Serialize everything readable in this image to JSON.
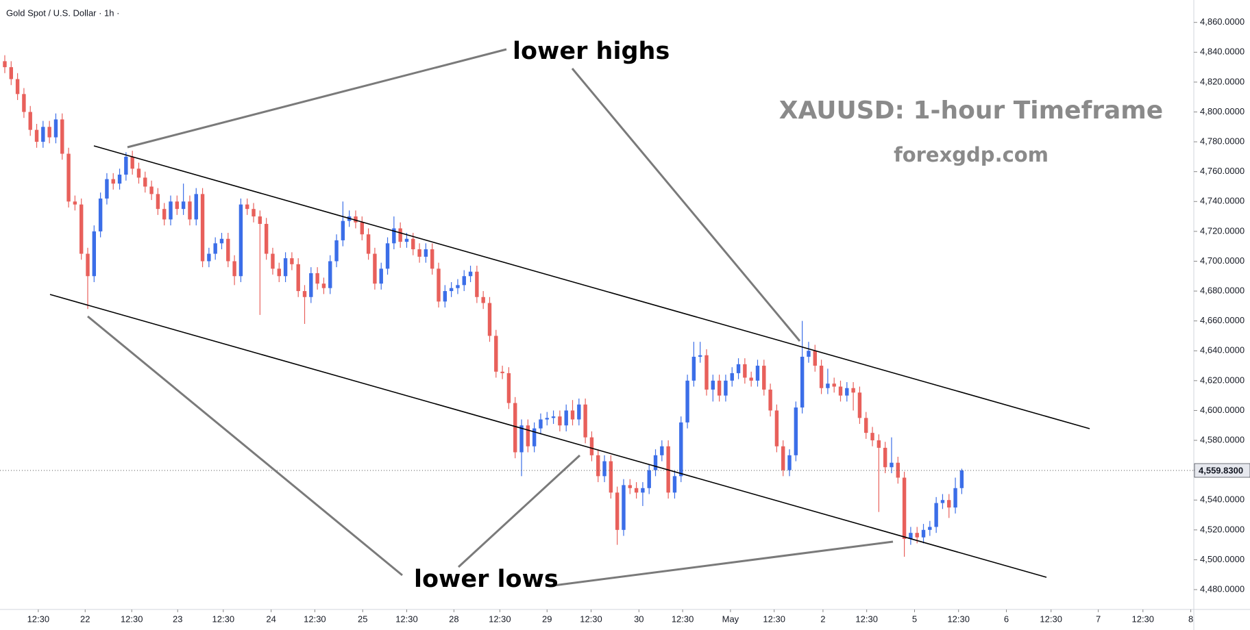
{
  "chart_data": {
    "type": "candlestick",
    "symbol": "Gold Spot / U.S. Dollar · 1h ·",
    "title": "XAUUSD: 1-hour Timeframe",
    "subtitle": "forexgdp.com",
    "annotations": [
      "lower highs",
      "lower lows"
    ],
    "up_color": "#3b6ee8",
    "down_color": "#e8605b",
    "last_price": {
      "value": 4559.83,
      "label": "4,559.8300"
    },
    "x": [
      0,
      1,
      2,
      3,
      4,
      5,
      6,
      7,
      8,
      9,
      10,
      11,
      12,
      13,
      14,
      15,
      16,
      17,
      18,
      19,
      20,
      21,
      22,
      23,
      24,
      25,
      26,
      27,
      28,
      29,
      30,
      31,
      32,
      33,
      34,
      35,
      36,
      37,
      38,
      39,
      40,
      41,
      42,
      43,
      44,
      45,
      46,
      47,
      48,
      49,
      50,
      51,
      52,
      53,
      54,
      55,
      56,
      57,
      58,
      59,
      60,
      61,
      62,
      63,
      64,
      65,
      66,
      67,
      68,
      69,
      70,
      71,
      72,
      73,
      74,
      75,
      76,
      77,
      78,
      79,
      80,
      81,
      82,
      83,
      84,
      85,
      86,
      87,
      88,
      89,
      90,
      91,
      92,
      93,
      94,
      95,
      96,
      97,
      98,
      99,
      100,
      101,
      102,
      103,
      104,
      105,
      106,
      107,
      108,
      109,
      110,
      111,
      112,
      113,
      114,
      115,
      116,
      117,
      118,
      119,
      120,
      121,
      122,
      123,
      124,
      125,
      126,
      127,
      128,
      129,
      130,
      131,
      132,
      133,
      134,
      135,
      136,
      137,
      138,
      139,
      140,
      141,
      142,
      143,
      144,
      145,
      146,
      147,
      148,
      149,
      150
    ],
    "open": [
      4834,
      4830,
      4822,
      4812,
      4800,
      4788,
      4780,
      4790,
      4783,
      4795,
      4772,
      4740,
      4738,
      4705,
      4690,
      4720,
      4742,
      4755,
      4752,
      4758,
      4770,
      4762,
      4756,
      4750,
      4745,
      4735,
      4728,
      4740,
      4735,
      4740,
      4728,
      4745,
      4700,
      4705,
      4712,
      4715,
      4700,
      4690,
      4738,
      4735,
      4730,
      4725,
      4705,
      4695,
      4690,
      4702,
      4698,
      4680,
      4676,
      4692,
      4685,
      4682,
      4700,
      4714,
      4727,
      4730,
      4726,
      4718,
      4705,
      4685,
      4695,
      4712,
      4722,
      4713,
      4715,
      4708,
      4703,
      4708,
      4695,
      4673,
      4680,
      4682,
      4684,
      4690,
      4693,
      4676,
      4672,
      4650,
      4626,
      4625,
      4605,
      4572,
      4590,
      4576,
      4588,
      4594,
      4595,
      4596,
      4590,
      4600,
      4594,
      4604,
      4582,
      4570,
      4556,
      4566,
      4545,
      4520,
      4550,
      4548,
      4545,
      4548,
      4560,
      4570,
      4576,
      4545,
      4556,
      4592,
      4620,
      4636,
      4637,
      4614,
      4620,
      4610,
      4620,
      4625,
      4631,
      4622,
      4620,
      4630,
      4614,
      4600,
      4576,
      4560,
      4570,
      4602,
      4636,
      4640,
      4630,
      4615,
      4618,
      4616,
      4610,
      4615,
      4612,
      4595,
      4585,
      4580,
      4575,
      4562,
      4565,
      4555,
      4514,
      4518,
      4515,
      4520,
      4522,
      4538,
      4540,
      4535,
      4548
    ],
    "high": [
      4838,
      4834,
      4826,
      4816,
      4804,
      4792,
      4794,
      4794,
      4799,
      4799,
      4776,
      4744,
      4742,
      4709,
      4724,
      4746,
      4759,
      4759,
      4762,
      4773,
      4774,
      4766,
      4760,
      4754,
      4749,
      4739,
      4744,
      4744,
      4752,
      4744,
      4749,
      4749,
      4709,
      4716,
      4719,
      4719,
      4704,
      4742,
      4742,
      4739,
      4734,
      4729,
      4709,
      4699,
      4706,
      4706,
      4702,
      4684,
      4696,
      4696,
      4689,
      4704,
      4718,
      4740,
      4734,
      4734,
      4730,
      4722,
      4709,
      4699,
      4716,
      4730,
      4726,
      4719,
      4719,
      4712,
      4712,
      4712,
      4699,
      4684,
      4686,
      4688,
      4694,
      4697,
      4697,
      4680,
      4676,
      4654,
      4630,
      4629,
      4609,
      4594,
      4594,
      4592,
      4598,
      4599,
      4600,
      4600,
      4604,
      4607,
      4608,
      4608,
      4586,
      4574,
      4570,
      4570,
      4549,
      4554,
      4554,
      4552,
      4552,
      4564,
      4574,
      4580,
      4580,
      4560,
      4596,
      4624,
      4646,
      4646,
      4641,
      4624,
      4624,
      4624,
      4629,
      4635,
      4635,
      4626,
      4634,
      4634,
      4618,
      4604,
      4580,
      4574,
      4606,
      4660,
      4646,
      4644,
      4634,
      4628,
      4622,
      4620,
      4619,
      4619,
      4616,
      4599,
      4589,
      4584,
      4579,
      4582,
      4569,
      4559,
      4522,
      4522,
      4524,
      4526,
      4542,
      4544,
      4544,
      4555,
      4561
    ],
    "low": [
      4826,
      4818,
      4808,
      4796,
      4784,
      4776,
      4776,
      4779,
      4779,
      4768,
      4736,
      4734,
      4701,
      4668,
      4686,
      4716,
      4738,
      4748,
      4748,
      4754,
      4758,
      4752,
      4746,
      4741,
      4731,
      4724,
      4724,
      4731,
      4731,
      4724,
      4724,
      4696,
      4696,
      4701,
      4708,
      4696,
      4684,
      4686,
      4731,
      4726,
      4664,
      4701,
      4691,
      4686,
      4686,
      4694,
      4676,
      4658,
      4672,
      4681,
      4678,
      4678,
      4696,
      4710,
      4723,
      4722,
      4714,
      4701,
      4681,
      4681,
      4691,
      4708,
      4709,
      4709,
      4704,
      4699,
      4699,
      4691,
      4669,
      4669,
      4676,
      4678,
      4680,
      4686,
      4672,
      4668,
      4646,
      4622,
      4621,
      4601,
      4568,
      4556,
      4572,
      4572,
      4584,
      4590,
      4591,
      4586,
      4586,
      4590,
      4590,
      4578,
      4566,
      4552,
      4552,
      4541,
      4510,
      4516,
      4544,
      4541,
      4536,
      4544,
      4556,
      4566,
      4541,
      4541,
      4552,
      4588,
      4616,
      4632,
      4610,
      4606,
      4606,
      4606,
      4616,
      4621,
      4618,
      4616,
      4616,
      4610,
      4596,
      4572,
      4556,
      4556,
      4566,
      4598,
      4632,
      4626,
      4611,
      4611,
      4612,
      4606,
      4606,
      4600,
      4591,
      4581,
      4576,
      4532,
      4558,
      4558,
      4551,
      4502,
      4510,
      4511,
      4511,
      4516,
      4518,
      4534,
      4528,
      4531,
      4544
    ],
    "close": [
      4830,
      4822,
      4812,
      4800,
      4788,
      4780,
      4790,
      4783,
      4795,
      4772,
      4740,
      4738,
      4705,
      4690,
      4720,
      4742,
      4755,
      4752,
      4758,
      4770,
      4762,
      4756,
      4750,
      4745,
      4735,
      4728,
      4740,
      4735,
      4740,
      4728,
      4745,
      4700,
      4705,
      4712,
      4715,
      4700,
      4690,
      4738,
      4735,
      4730,
      4725,
      4705,
      4695,
      4690,
      4702,
      4698,
      4680,
      4676,
      4692,
      4685,
      4682,
      4700,
      4714,
      4727,
      4730,
      4726,
      4718,
      4705,
      4685,
      4695,
      4712,
      4722,
      4713,
      4715,
      4708,
      4703,
      4708,
      4695,
      4673,
      4680,
      4682,
      4684,
      4690,
      4693,
      4676,
      4672,
      4650,
      4626,
      4625,
      4605,
      4572,
      4590,
      4576,
      4588,
      4594,
      4595,
      4596,
      4590,
      4600,
      4594,
      4604,
      4582,
      4570,
      4556,
      4566,
      4545,
      4520,
      4550,
      4548,
      4545,
      4548,
      4560,
      4570,
      4576,
      4545,
      4556,
      4592,
      4620,
      4636,
      4637,
      4614,
      4620,
      4610,
      4620,
      4625,
      4631,
      4622,
      4620,
      4630,
      4614,
      4600,
      4576,
      4560,
      4570,
      4602,
      4636,
      4640,
      4630,
      4615,
      4618,
      4616,
      4610,
      4615,
      4612,
      4595,
      4585,
      4580,
      4575,
      4562,
      4565,
      4555,
      4514,
      4518,
      4515,
      4520,
      4522,
      4538,
      4540,
      4535,
      4548,
      4559.83
    ],
    "xlim": [
      -0.75,
      186.375
    ],
    "xticks": [
      {
        "value": 5.25,
        "label": "12:30"
      },
      {
        "value": 12.6,
        "label": "22"
      },
      {
        "value": 19.9,
        "label": "12:30"
      },
      {
        "value": 27.1,
        "label": "23"
      },
      {
        "value": 34.25,
        "label": "12:30"
      },
      {
        "value": 41.75,
        "label": "24"
      },
      {
        "value": 48.6,
        "label": "12:30"
      },
      {
        "value": 56.1,
        "label": "25"
      },
      {
        "value": 63,
        "label": "12:30"
      },
      {
        "value": 70.4,
        "label": "28"
      },
      {
        "value": 77.6,
        "label": "12:30"
      },
      {
        "value": 85,
        "label": "29"
      },
      {
        "value": 91.9,
        "label": "12:30"
      },
      {
        "value": 99.4,
        "label": "30"
      },
      {
        "value": 106.25,
        "label": "12:30"
      },
      {
        "value": 113.75,
        "label": "May"
      },
      {
        "value": 120.6,
        "label": "12:30"
      },
      {
        "value": 128.25,
        "label": "2"
      },
      {
        "value": 135.1,
        "label": "12:30"
      },
      {
        "value": 142.6,
        "label": "5"
      },
      {
        "value": 149.5,
        "label": "12:30"
      },
      {
        "value": 157,
        "label": "6"
      },
      {
        "value": 164,
        "label": "12:30"
      },
      {
        "value": 171.4,
        "label": "7"
      },
      {
        "value": 178.4,
        "label": "12:30"
      },
      {
        "value": 185.9,
        "label": "8"
      }
    ],
    "ylim": [
      4466.7,
      4875.0
    ],
    "yticks": [
      {
        "value": 4480,
        "label": "4,480.0000"
      },
      {
        "value": 4500,
        "label": "4,500.0000"
      },
      {
        "value": 4520,
        "label": "4,520.0000"
      },
      {
        "value": 4540,
        "label": "4,540.0000"
      },
      {
        "value": 4560,
        "label": "4,560.0000"
      },
      {
        "value": 4580,
        "label": "4,580.0000"
      },
      {
        "value": 4600,
        "label": "4,600.0000"
      },
      {
        "value": 4620,
        "label": "4,620.0000"
      },
      {
        "value": 4640,
        "label": "4,640.0000"
      },
      {
        "value": 4660,
        "label": "4,660.0000"
      },
      {
        "value": 4680,
        "label": "4,680.0000"
      },
      {
        "value": 4700,
        "label": "4,700.0000"
      },
      {
        "value": 4720,
        "label": "4,720.0000"
      },
      {
        "value": 4740,
        "label": "4,740.0000"
      },
      {
        "value": 4760,
        "label": "4,760.0000"
      },
      {
        "value": 4780,
        "label": "4,780.0000"
      },
      {
        "value": 4800,
        "label": "4,800.0000"
      },
      {
        "value": 4820,
        "label": "4,820.0000"
      },
      {
        "value": 4840,
        "label": "4,840.0000"
      },
      {
        "value": 4860,
        "label": "4,860.0000"
      }
    ]
  }
}
